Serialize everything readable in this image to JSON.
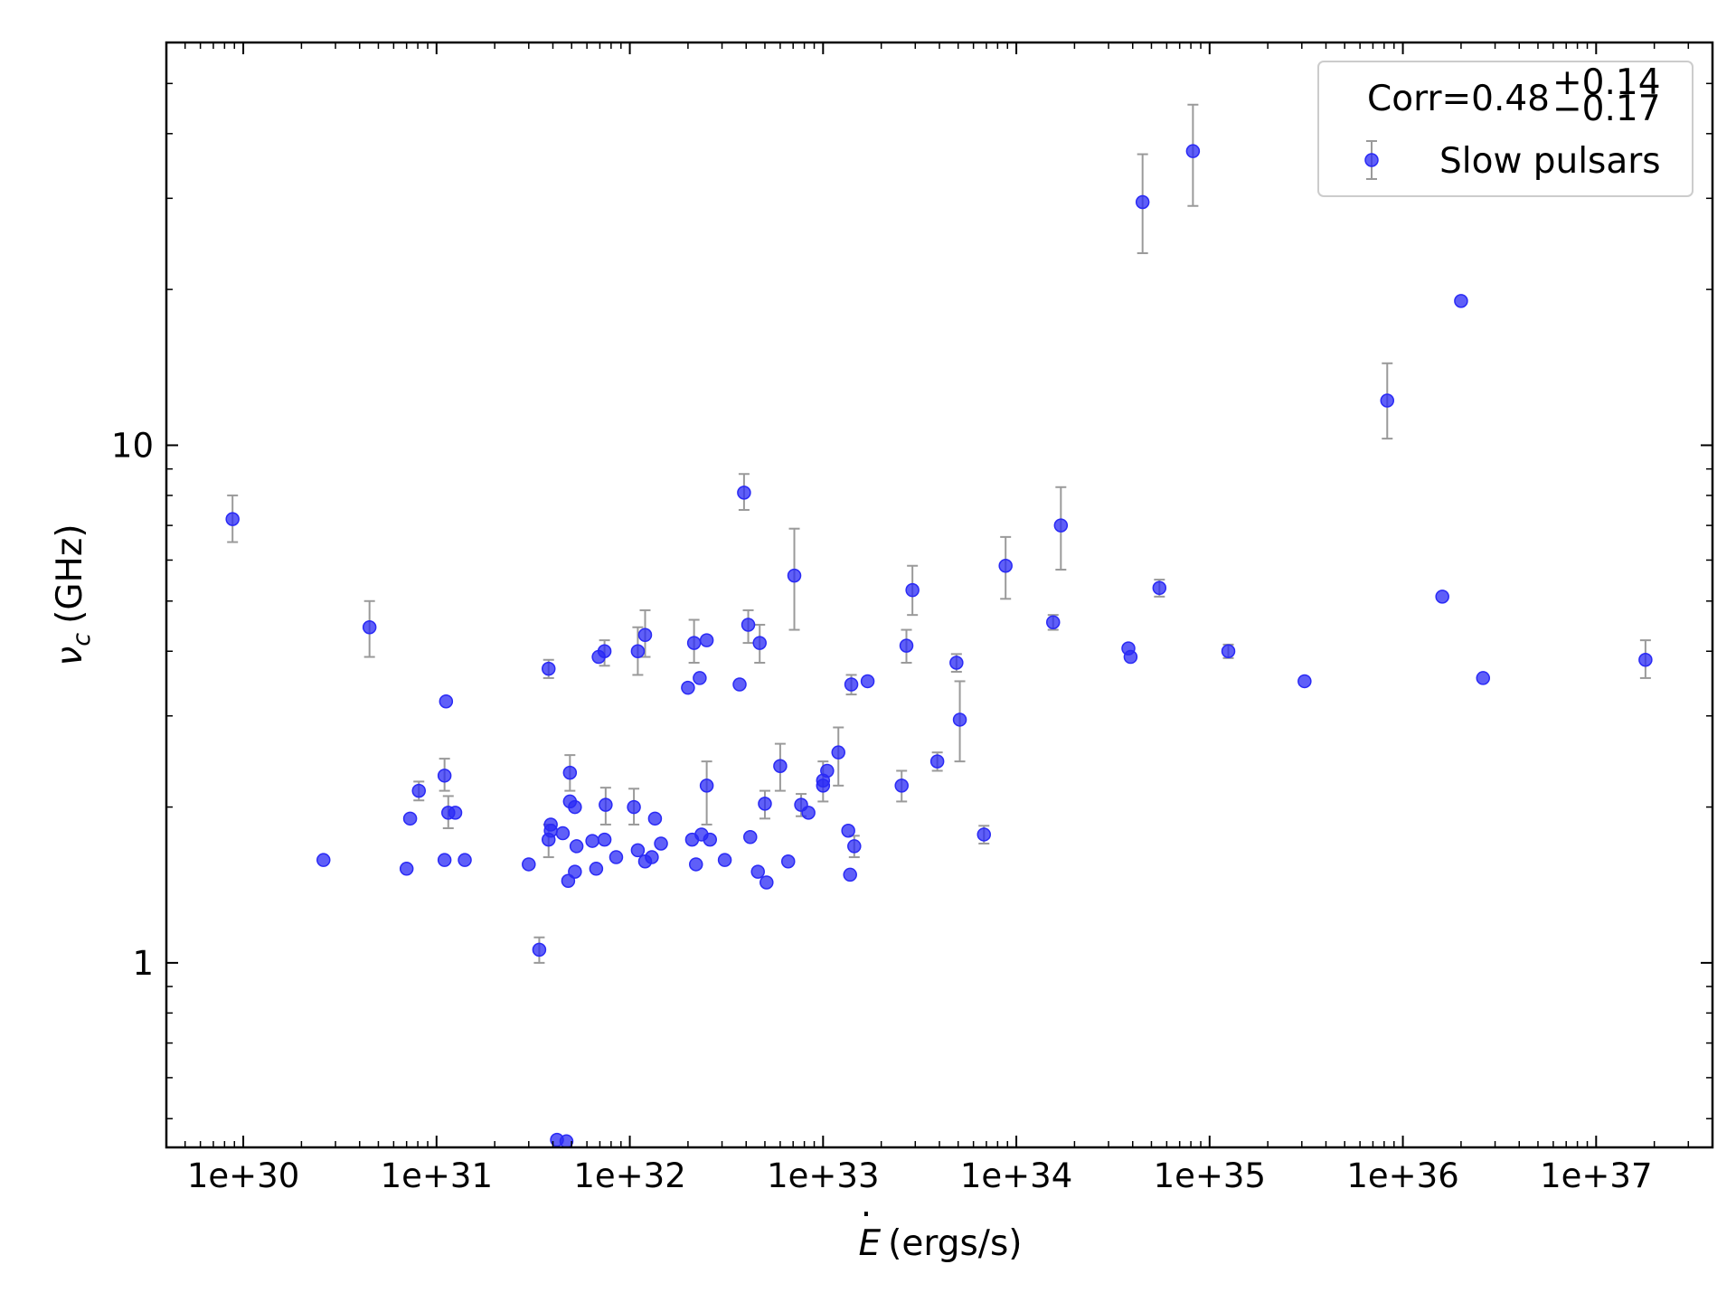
{
  "chart_data": {
    "type": "scatter",
    "x_scale": "log",
    "y_scale": "log",
    "xlabel_var": "E",
    "xlabel_units": "(ergs/s)",
    "ylabel_var": "ν",
    "ylabel_sub": "c",
    "ylabel_units": "(GHz)",
    "xlim": [
      4e+29,
      4e+37
    ],
    "ylim": [
      0.44,
      60
    ],
    "x_ticks": [
      1e+30,
      1e+31,
      1e+32,
      1e+33,
      1e+34,
      1e+35,
      1e+36,
      1e+37
    ],
    "x_tick_labels": [
      "1e+30",
      "1e+31",
      "1e+32",
      "1e+33",
      "1e+34",
      "1e+35",
      "1e+36",
      "1e+37"
    ],
    "y_ticks": [
      1,
      10
    ],
    "y_tick_labels": [
      "1",
      "10"
    ],
    "legend": {
      "placement": "top-right",
      "corr_text": "Corr=0.48",
      "corr_plus": "+0.14",
      "corr_minus": "−0.17",
      "series_label": "Slow pulsars"
    },
    "colors": {
      "marker": "#2a2af5",
      "errorbar": "#9a9a9a"
    },
    "series": [
      {
        "name": "Slow pulsars",
        "points": [
          {
            "x": 8.8e+29,
            "y": 7.2,
            "lo": 6.5,
            "hi": 8.0
          },
          {
            "x": 2.6e+30,
            "y": 1.58
          },
          {
            "x": 4.5e+30,
            "y": 4.45,
            "lo": 3.9,
            "hi": 5.0
          },
          {
            "x": 7e+30,
            "y": 1.52
          },
          {
            "x": 7.3e+30,
            "y": 1.9
          },
          {
            "x": 8.1e+30,
            "y": 2.15,
            "lo": 2.06,
            "hi": 2.24
          },
          {
            "x": 1.1e+31,
            "y": 1.58
          },
          {
            "x": 1.1e+31,
            "y": 2.3,
            "lo": 2.15,
            "hi": 2.48
          },
          {
            "x": 1.12e+31,
            "y": 3.2
          },
          {
            "x": 1.15e+31,
            "y": 1.95,
            "lo": 1.82,
            "hi": 2.1
          },
          {
            "x": 1.25e+31,
            "y": 1.95
          },
          {
            "x": 1.4e+31,
            "y": 1.58
          },
          {
            "x": 3e+31,
            "y": 1.55
          },
          {
            "x": 3.4e+31,
            "y": 1.06,
            "lo": 1.0,
            "hi": 1.12
          },
          {
            "x": 3.8e+31,
            "y": 1.73,
            "lo": 1.6,
            "hi": 1.85
          },
          {
            "x": 3.8e+31,
            "y": 3.7,
            "lo": 3.55,
            "hi": 3.85
          },
          {
            "x": 3.9e+31,
            "y": 1.8
          },
          {
            "x": 3.9e+31,
            "y": 1.85
          },
          {
            "x": 4.2e+31,
            "y": 0.455
          },
          {
            "x": 4.5e+31,
            "y": 1.78
          },
          {
            "x": 4.7e+31,
            "y": 0.452
          },
          {
            "x": 4.8e+31,
            "y": 1.44
          },
          {
            "x": 4.9e+31,
            "y": 2.05
          },
          {
            "x": 4.9e+31,
            "y": 2.33,
            "lo": 2.15,
            "hi": 2.52
          },
          {
            "x": 5.2e+31,
            "y": 1.5
          },
          {
            "x": 5.2e+31,
            "y": 2.0
          },
          {
            "x": 5.3e+31,
            "y": 1.68
          },
          {
            "x": 6.4e+31,
            "y": 1.72
          },
          {
            "x": 6.7e+31,
            "y": 1.52
          },
          {
            "x": 6.9e+31,
            "y": 3.9
          },
          {
            "x": 7.4e+31,
            "y": 1.73
          },
          {
            "x": 7.4e+31,
            "y": 4.0,
            "lo": 3.75,
            "hi": 4.2
          },
          {
            "x": 7.5e+31,
            "y": 2.02,
            "lo": 1.85,
            "hi": 2.18
          },
          {
            "x": 8.5e+31,
            "y": 1.6
          },
          {
            "x": 1.05e+32,
            "y": 2.0,
            "lo": 1.85,
            "hi": 2.17
          },
          {
            "x": 1.1e+32,
            "y": 1.65
          },
          {
            "x": 1.1e+32,
            "y": 4.0,
            "lo": 3.6,
            "hi": 4.45
          },
          {
            "x": 1.2e+32,
            "y": 4.3,
            "lo": 3.9,
            "hi": 4.8
          },
          {
            "x": 1.2e+32,
            "y": 1.57
          },
          {
            "x": 1.3e+32,
            "y": 1.6
          },
          {
            "x": 1.35e+32,
            "y": 1.9
          },
          {
            "x": 1.45e+32,
            "y": 1.7
          },
          {
            "x": 2e+32,
            "y": 3.4
          },
          {
            "x": 2.1e+32,
            "y": 1.73
          },
          {
            "x": 2.15e+32,
            "y": 4.15,
            "lo": 3.8,
            "hi": 4.6
          },
          {
            "x": 2.2e+32,
            "y": 1.55
          },
          {
            "x": 2.3e+32,
            "y": 3.55
          },
          {
            "x": 2.35e+32,
            "y": 1.77
          },
          {
            "x": 2.5e+32,
            "y": 2.2,
            "lo": 1.85,
            "hi": 2.45
          },
          {
            "x": 2.5e+32,
            "y": 4.2
          },
          {
            "x": 2.6e+32,
            "y": 1.73
          },
          {
            "x": 3.1e+32,
            "y": 1.58
          },
          {
            "x": 3.7e+32,
            "y": 3.45
          },
          {
            "x": 3.9e+32,
            "y": 8.1,
            "lo": 7.5,
            "hi": 8.8
          },
          {
            "x": 4.1e+32,
            "y": 4.5,
            "lo": 4.15,
            "hi": 4.8
          },
          {
            "x": 4.2e+32,
            "y": 1.75
          },
          {
            "x": 4.6e+32,
            "y": 1.5
          },
          {
            "x": 4.7e+32,
            "y": 4.15,
            "lo": 3.8,
            "hi": 4.5
          },
          {
            "x": 5e+32,
            "y": 2.03,
            "lo": 1.9,
            "hi": 2.15
          },
          {
            "x": 5.1e+32,
            "y": 1.43
          },
          {
            "x": 6e+32,
            "y": 2.4,
            "lo": 2.15,
            "hi": 2.65
          },
          {
            "x": 6.6e+32,
            "y": 1.57
          },
          {
            "x": 7.1e+32,
            "y": 5.6,
            "lo": 4.4,
            "hi": 6.9
          },
          {
            "x": 7.7e+32,
            "y": 2.02,
            "lo": 1.92,
            "hi": 2.12
          },
          {
            "x": 8.4e+32,
            "y": 1.95
          },
          {
            "x": 1e+33,
            "y": 2.2
          },
          {
            "x": 1e+33,
            "y": 2.25,
            "lo": 2.05,
            "hi": 2.45
          },
          {
            "x": 1.05e+33,
            "y": 2.35
          },
          {
            "x": 1.2e+33,
            "y": 2.55,
            "lo": 2.2,
            "hi": 2.85
          },
          {
            "x": 1.35e+33,
            "y": 1.8
          },
          {
            "x": 1.38e+33,
            "y": 1.48
          },
          {
            "x": 1.4e+33,
            "y": 3.45,
            "lo": 3.3,
            "hi": 3.6
          },
          {
            "x": 1.45e+33,
            "y": 1.68,
            "lo": 1.6,
            "hi": 1.76
          },
          {
            "x": 1.7e+33,
            "y": 3.5
          },
          {
            "x": 2.55e+33,
            "y": 2.2,
            "lo": 2.05,
            "hi": 2.35
          },
          {
            "x": 2.7e+33,
            "y": 4.1,
            "lo": 3.8,
            "hi": 4.4
          },
          {
            "x": 2.9e+33,
            "y": 5.25,
            "lo": 4.7,
            "hi": 5.85
          },
          {
            "x": 3.9e+33,
            "y": 2.45,
            "lo": 2.35,
            "hi": 2.55
          },
          {
            "x": 4.9e+33,
            "y": 3.8,
            "lo": 3.65,
            "hi": 3.95
          },
          {
            "x": 5.1e+33,
            "y": 2.95,
            "lo": 2.45,
            "hi": 3.5
          },
          {
            "x": 6.8e+33,
            "y": 1.77,
            "lo": 1.7,
            "hi": 1.84
          },
          {
            "x": 8.8e+33,
            "y": 5.85,
            "lo": 5.05,
            "hi": 6.65
          },
          {
            "x": 1.55e+34,
            "y": 4.55,
            "lo": 4.4,
            "hi": 4.7
          },
          {
            "x": 1.7e+34,
            "y": 7.0,
            "lo": 5.75,
            "hi": 8.3
          },
          {
            "x": 3.8e+34,
            "y": 4.05
          },
          {
            "x": 3.9e+34,
            "y": 3.9
          },
          {
            "x": 4.5e+34,
            "y": 29.5,
            "lo": 23.5,
            "hi": 36.5
          },
          {
            "x": 5.5e+34,
            "y": 5.3,
            "lo": 5.1,
            "hi": 5.5
          },
          {
            "x": 8.2e+34,
            "y": 37.0,
            "lo": 29.0,
            "hi": 45.5
          },
          {
            "x": 1.25e+35,
            "y": 4.0,
            "lo": 3.88,
            "hi": 4.12
          },
          {
            "x": 3.1e+35,
            "y": 3.5
          },
          {
            "x": 8.3e+35,
            "y": 12.2,
            "lo": 10.3,
            "hi": 14.4
          },
          {
            "x": 1.6e+36,
            "y": 5.1
          },
          {
            "x": 2e+36,
            "y": 19.0
          },
          {
            "x": 2.6e+36,
            "y": 3.55
          },
          {
            "x": 1.8e+37,
            "y": 3.85,
            "lo": 3.55,
            "hi": 4.2
          }
        ]
      }
    ]
  }
}
